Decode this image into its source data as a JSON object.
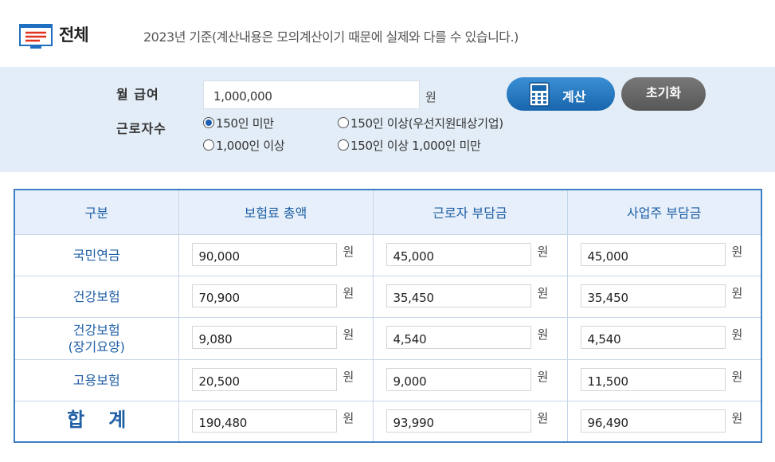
{
  "header": {
    "title": "전체",
    "note": "2023년 기준(계산내용은 모의계산이기 때문에 실제와 다를 수 있습니다.)"
  },
  "form": {
    "salary_label": "월 급여",
    "salary_value": "1,000,000",
    "unit": "원",
    "workers_label": "근로자수",
    "options": [
      {
        "label": "150인 미만",
        "selected": true
      },
      {
        "label": "150인 이상(우선지원대상기업)",
        "selected": false
      },
      {
        "label": "1,000인 이상",
        "selected": false
      },
      {
        "label": "150인 이상 1,000인 미만",
        "selected": false
      }
    ],
    "calc_button": "계산",
    "reset_button": "초기화"
  },
  "table": {
    "headers": [
      "구분",
      "보험료 총액",
      "근로자 부담금",
      "사업주 부담금"
    ],
    "unit": "원",
    "rows": [
      {
        "label": "국민연금",
        "total": "90,000",
        "employee": "45,000",
        "employer": "45,000"
      },
      {
        "label": "건강보험",
        "total": "70,900",
        "employee": "35,450",
        "employer": "35,450"
      },
      {
        "label": "건강보험",
        "label2": "(장기요양)",
        "total": "9,080",
        "employee": "4,540",
        "employer": "4,540"
      },
      {
        "label": "고용보험",
        "total": "20,500",
        "employee": "9,000",
        "employer": "11,500"
      },
      {
        "label": "합계",
        "total": "190,480",
        "employee": "93,990",
        "employer": "96,490"
      }
    ]
  },
  "colors": {
    "accent": "#1f5fa6",
    "form_bg": "#e3edf7",
    "calc_button": "#1866ad",
    "reset_button": "#5f5f5f"
  },
  "icons": {
    "title_icon": "document-list-icon",
    "calc_icon": "calculator-icon"
  }
}
